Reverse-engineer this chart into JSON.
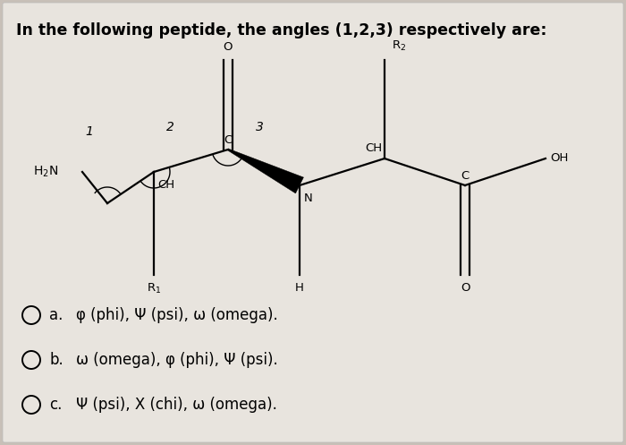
{
  "title": "In the following peptide, the angles (1,2,3) respectively are:",
  "title_fontsize": 12.5,
  "title_fontweight": "bold",
  "bg_color": "#c8c0b8",
  "panel_bg": "#ddd8d0",
  "options": [
    [
      "a.",
      "φ (phi), Ψ (psi), ω (omega)."
    ],
    [
      "b.",
      "ω (omega), φ (phi), Ψ (psi)."
    ],
    [
      "c.",
      "Ψ (psi), X (chi), ω (omega)."
    ]
  ],
  "option_fontsize": 12
}
